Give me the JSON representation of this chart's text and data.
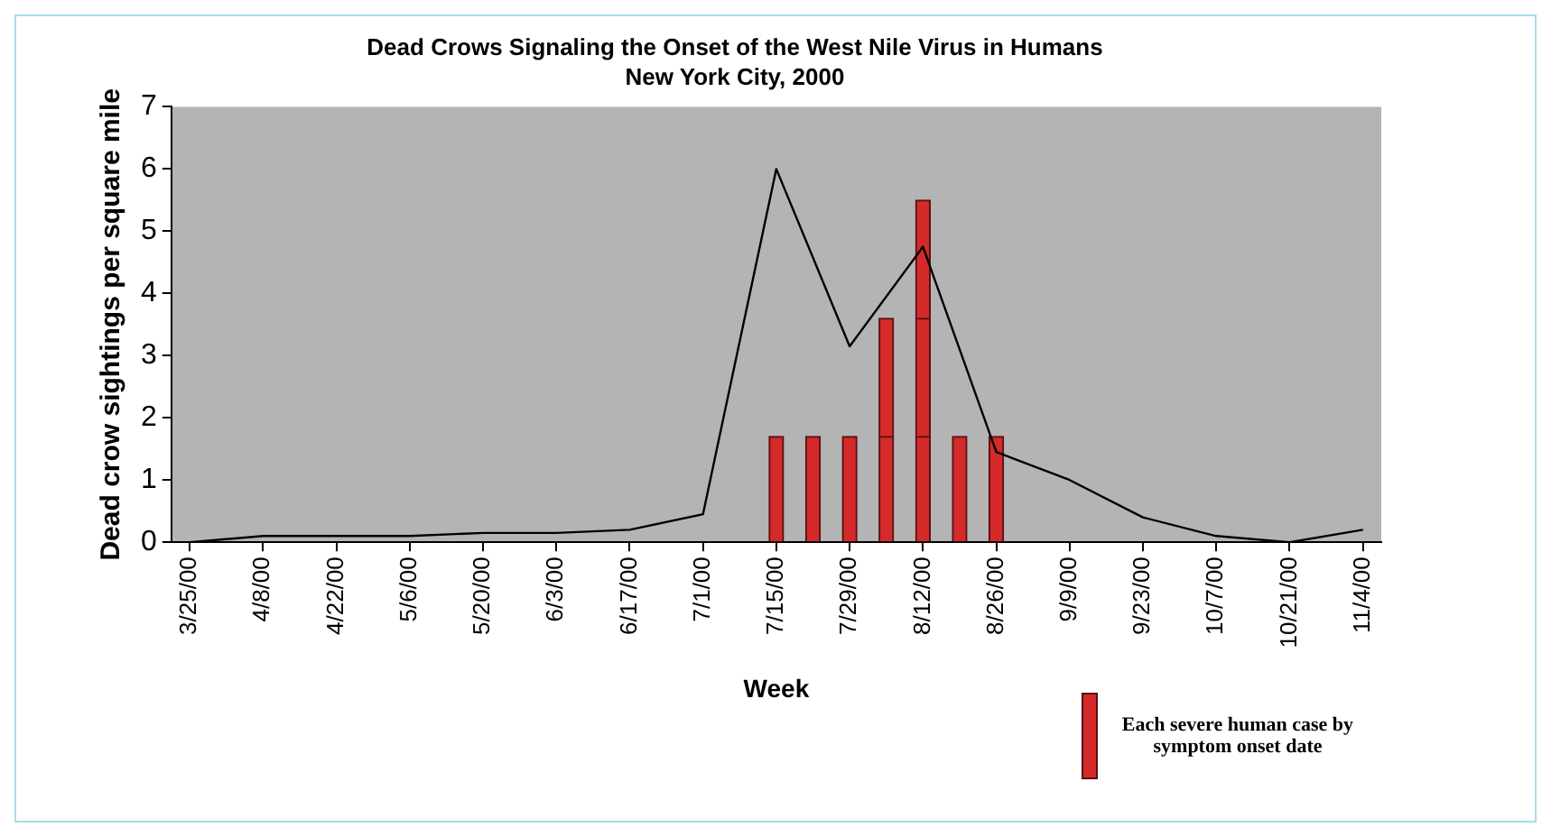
{
  "chart_data": {
    "type": "bar",
    "title": "Dead Crows Signaling the Onset of the West Nile Virus in Humans",
    "subtitle": "New York City, 2000",
    "xlabel": "Week",
    "ylabel": "Dead crow sightings per square mile",
    "categories": [
      "3/25/00",
      null,
      "4/8/00",
      null,
      "4/22/00",
      null,
      "5/6/00",
      null,
      "5/20/00",
      null,
      "6/3/00",
      null,
      "6/17/00",
      null,
      "7/1/00",
      null,
      "7/15/00",
      null,
      "7/29/00",
      null,
      "8/12/00",
      null,
      "8/26/00",
      null,
      "9/9/00",
      null,
      "9/23/00",
      null,
      "10/7/00",
      null,
      "10/21/00",
      null,
      "11/4/00"
    ],
    "series": [
      {
        "type": "line",
        "color": "#000000",
        "values": [
          0,
          null,
          0.1,
          null,
          0.1,
          null,
          0.1,
          null,
          0.15,
          null,
          0.15,
          null,
          0.2,
          null,
          0.45,
          null,
          6.0,
          null,
          3.15,
          null,
          4.75,
          null,
          1.45,
          null,
          1.0,
          null,
          0.4,
          null,
          0.1,
          null,
          0.0,
          null,
          0.2
        ]
      },
      {
        "name": "Each severe human case by symptom onset date",
        "color": "#d42a2a",
        "values": [
          null,
          null,
          null,
          null,
          null,
          null,
          null,
          null,
          null,
          null,
          null,
          null,
          null,
          null,
          null,
          null,
          1.7,
          1.7,
          1.7,
          1.7,
          1.7,
          1.7,
          1.7,
          null,
          null,
          null,
          null,
          null,
          null,
          null,
          null,
          null,
          null
        ]
      },
      {
        "color": "#d42a2a",
        "values": [
          null,
          null,
          null,
          null,
          null,
          null,
          null,
          null,
          null,
          null,
          null,
          null,
          null,
          null,
          null,
          null,
          null,
          null,
          null,
          1.9,
          1.9,
          null,
          null,
          null,
          null,
          null,
          null,
          null,
          null,
          null,
          null,
          null,
          null
        ]
      },
      {
        "color": "#d42a2a",
        "values": [
          null,
          null,
          null,
          null,
          null,
          null,
          null,
          null,
          null,
          null,
          null,
          null,
          null,
          null,
          null,
          null,
          null,
          null,
          null,
          null,
          1.9,
          null,
          null,
          null,
          null,
          null,
          null,
          null,
          null,
          null,
          null,
          null,
          null
        ]
      }
    ],
    "stacked": true,
    "ylim": [
      0,
      7
    ],
    "yticks": [
      0,
      1,
      2,
      3,
      4,
      5,
      6,
      7
    ],
    "grid": false,
    "legend": "bottom right",
    "marker": "none"
  }
}
